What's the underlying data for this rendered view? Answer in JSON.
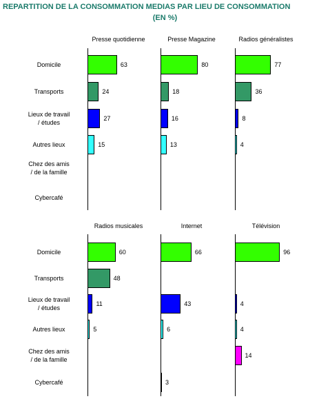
{
  "chart_data": {
    "type": "bar",
    "title": "REPARTITION DE LA CONSOMMATION MEDIAS PAR LIEU DE CONSOMMATION",
    "subtitle": "(EN %)",
    "categories": [
      "Domicile",
      "Transports",
      "Lieux de travail\n/ études",
      "Autres lieux",
      "Chez des amis\n/ de la famille",
      "Cybercafé"
    ],
    "colors": [
      "#33ff00",
      "#339966",
      "#0000ff",
      "#33ffff",
      "#ff00ff",
      "#660033"
    ],
    "xlim": [
      0,
      100
    ],
    "panels": [
      {
        "title": "Presse quotidienne",
        "values": [
          63,
          24,
          27,
          15,
          null,
          null
        ]
      },
      {
        "title": "Presse Magazine",
        "values": [
          80,
          18,
          16,
          13,
          null,
          null
        ]
      },
      {
        "title": "Radios généralistes",
        "values": [
          77,
          36,
          8,
          4,
          null,
          null
        ]
      },
      {
        "title": "Radios musicales",
        "values": [
          60,
          48,
          11,
          5,
          null,
          null
        ]
      },
      {
        "title": "Internet",
        "values": [
          66,
          null,
          43,
          6,
          null,
          3
        ]
      },
      {
        "title": "Télévision",
        "values": [
          96,
          null,
          4,
          4,
          14,
          null
        ]
      }
    ]
  }
}
